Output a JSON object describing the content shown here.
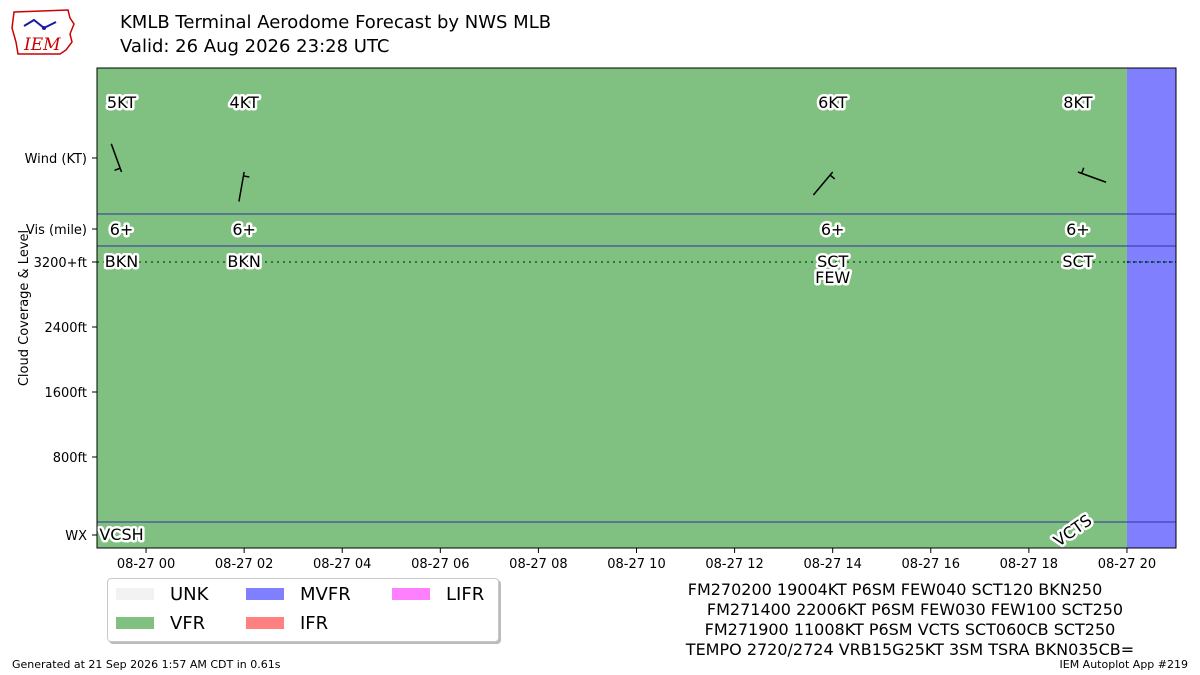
{
  "title": "KMLB Terminal Aerodome Forecast by NWS MLB",
  "subtitle": "Valid: 26 Aug 2026 23:28 UTC",
  "logo": {
    "text": "IEM",
    "icon": "iowa-state-outline-logo"
  },
  "footer": {
    "generated": "Generated at 21 Sep 2026 1:57 AM CDT in 0.61s",
    "app": "IEM Autoplot App #219"
  },
  "taf_text": [
    "FM270200 19004KT P6SM FEW040 SCT120 BKN250",
    "FM271400 22006KT P6SM FEW030 FEW100 SCT250",
    "FM271900 11008KT P6SM VCTS SCT060CB SCT250",
    "TEMPO 2720/2724 VRB15G25KT 3SM TSRA BKN035CB="
  ],
  "legend": [
    {
      "label": "UNK",
      "color": "#f2f2f2"
    },
    {
      "label": "MVFR",
      "color": "#8080ff"
    },
    {
      "label": "LIFR",
      "color": "#ff80ff"
    },
    {
      "label": "VFR",
      "color": "#80c080"
    },
    {
      "label": "IFR",
      "color": "#ff8080"
    }
  ],
  "chart_data": {
    "type": "timeline",
    "y_labels": [
      "Wind (KT)",
      "Vis (mile)",
      "3200+ft",
      "2400ft",
      "1600ft",
      "800ft",
      "WX"
    ],
    "y_axis_title": "Cloud Coverage & Level",
    "x_ticks": [
      "08-27 00",
      "08-27 02",
      "08-27 04",
      "08-27 06",
      "08-27 08",
      "08-27 10",
      "08-27 12",
      "08-27 14",
      "08-27 16",
      "08-27 18",
      "08-27 20"
    ],
    "x_range_hours": [
      -1.0,
      21.0
    ],
    "flight_category_periods": [
      {
        "start_hour": -1.0,
        "end_hour": 20.0,
        "category": "VFR",
        "color": "#80c080"
      },
      {
        "start_hour": 20.0,
        "end_hour": 21.0,
        "category": "MVFR",
        "color": "#8080ff"
      }
    ],
    "forecasts": [
      {
        "hour": -0.5,
        "wind_label": "5KT",
        "wind_dir": 340,
        "wind_speed": 5,
        "vis_label": "6+",
        "clouds": [
          "BKN"
        ],
        "wx": "VCSH"
      },
      {
        "hour": 2.0,
        "wind_label": "4KT",
        "wind_dir": 190,
        "wind_speed": 4,
        "vis_label": "6+",
        "clouds": [
          "BKN"
        ],
        "wx": ""
      },
      {
        "hour": 14.0,
        "wind_label": "6KT",
        "wind_dir": 220,
        "wind_speed": 6,
        "vis_label": "6+",
        "clouds": [
          "SCT",
          "FEW"
        ],
        "wx": ""
      },
      {
        "hour": 19.0,
        "wind_label": "8KT",
        "wind_dir": 110,
        "wind_speed": 8,
        "vis_label": "6+",
        "clouds": [
          "SCT"
        ],
        "wx": "VCTS"
      }
    ],
    "cloud_level_line": "3200+ft"
  }
}
